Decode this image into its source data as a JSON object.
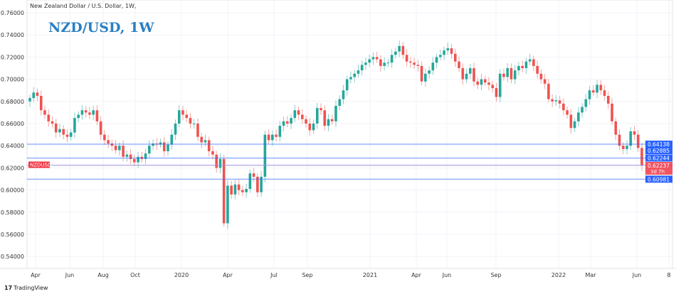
{
  "header": {
    "subtitle": "New Zealand Dollar / U.S. Dollar, 1W,",
    "title": "NZD/USD, 1W"
  },
  "footer": {
    "brand": "TradingView",
    "brand_icon": "tradingview-logo-icon"
  },
  "chart_data": {
    "type": "candlestick",
    "interval": "1W",
    "ylim": [
      0.53,
      0.765
    ],
    "y_ticks": [
      "0.76000",
      "0.74000",
      "0.72000",
      "0.70000",
      "0.68000",
      "0.66000",
      "0.64000",
      "0.62000",
      "0.60000",
      "0.58000",
      "0.56000",
      "0.54000"
    ],
    "x_ticks": [
      "Apr",
      "Jun",
      "Aug",
      "Oct",
      "2020",
      "Apr",
      "Jul",
      "Sep",
      "2021",
      "Apr",
      "Jun",
      "Sep",
      "2022",
      "Mar",
      "Jun",
      "8"
    ],
    "grid": true,
    "colors": {
      "up": "#26a69a",
      "down": "#ef5350",
      "level_line": "#2962ff",
      "price_line": "#9c8fe0",
      "level_label_bg": "#2962ff",
      "price_label_bg": "#f23645"
    },
    "first_open": 0.68,
    "closes": [
      0.683,
      0.688,
      0.685,
      0.672,
      0.668,
      0.662,
      0.66,
      0.652,
      0.655,
      0.65,
      0.648,
      0.652,
      0.665,
      0.668,
      0.672,
      0.67,
      0.668,
      0.672,
      0.662,
      0.65,
      0.645,
      0.642,
      0.64,
      0.636,
      0.64,
      0.63,
      0.632,
      0.628,
      0.625,
      0.63,
      0.628,
      0.633,
      0.64,
      0.642,
      0.641,
      0.643,
      0.635,
      0.641,
      0.65,
      0.66,
      0.672,
      0.668,
      0.665,
      0.66,
      0.66,
      0.648,
      0.643,
      0.645,
      0.635,
      0.632,
      0.62,
      0.628,
      0.57,
      0.604,
      0.596,
      0.605,
      0.6,
      0.598,
      0.601,
      0.615,
      0.612,
      0.598,
      0.612,
      0.65,
      0.645,
      0.65,
      0.648,
      0.658,
      0.662,
      0.66,
      0.665,
      0.672,
      0.668,
      0.664,
      0.66,
      0.654,
      0.66,
      0.674,
      0.672,
      0.658,
      0.664,
      0.662,
      0.676,
      0.682,
      0.69,
      0.7,
      0.702,
      0.705,
      0.708,
      0.713,
      0.715,
      0.718,
      0.72,
      0.718,
      0.712,
      0.715,
      0.715,
      0.722,
      0.725,
      0.73,
      0.722,
      0.716,
      0.715,
      0.713,
      0.712,
      0.698,
      0.705,
      0.708,
      0.715,
      0.72,
      0.722,
      0.726,
      0.728,
      0.723,
      0.716,
      0.71,
      0.7,
      0.705,
      0.71,
      0.698,
      0.695,
      0.7,
      0.697,
      0.695,
      0.692,
      0.684,
      0.705,
      0.702,
      0.71,
      0.7,
      0.708,
      0.712,
      0.71,
      0.716,
      0.718,
      0.712,
      0.705,
      0.7,
      0.696,
      0.682,
      0.68,
      0.681,
      0.678,
      0.672,
      0.668,
      0.656,
      0.662,
      0.67,
      0.675,
      0.682,
      0.69,
      0.688,
      0.695,
      0.69,
      0.685,
      0.678,
      0.662,
      0.65,
      0.64,
      0.637,
      0.64,
      0.653,
      0.65,
      0.638,
      0.622
    ],
    "levels": [
      {
        "value": 0.64138,
        "label": "0.64138"
      },
      {
        "value": 0.62885,
        "label": "0.62885"
      },
      {
        "value": 0.60981,
        "label": "0.60981"
      }
    ],
    "extra_label": "0.62244",
    "current_price": {
      "value": 0.62237,
      "label": "0.62237",
      "countdown": "3d 7h",
      "symbol": "NZDUSD"
    }
  }
}
